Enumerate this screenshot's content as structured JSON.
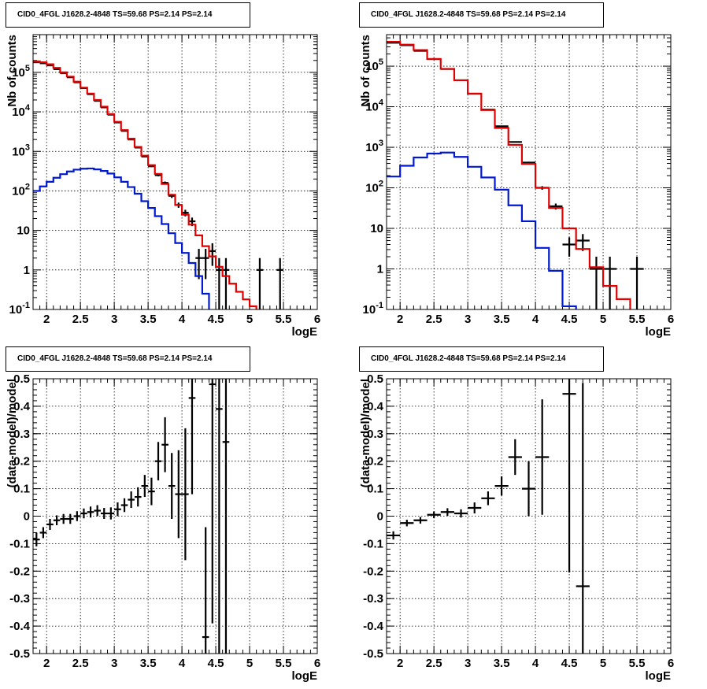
{
  "colors": {
    "data": "#000000",
    "model": "#e00000",
    "component": "#0018d0",
    "grid": "#000000"
  },
  "panels": [
    {
      "title": "CID0_4FGL J1628.2-4848 TS=59.68 PS=2.14 PS=2.14",
      "xlabel": "logE",
      "ylabel": "Nb of counts"
    },
    {
      "title": "CID0_4FGL J1628.2-4848 TS=59.68 PS=2.14 PS=2.14",
      "xlabel": "logE",
      "ylabel": "Nb of counts"
    },
    {
      "title": "CID0_4FGL J1628.2-4848 TS=59.68 PS=2.14 PS=2.14",
      "xlabel": "logE",
      "ylabel": "(data-model)/model"
    },
    {
      "title": "CID0_4FGL J1628.2-4848 TS=59.68 PS=2.14 PS=2.14",
      "xlabel": "logE",
      "ylabel": "(data-model)/model"
    }
  ],
  "chart_data": [
    {
      "type": "line",
      "title": "CID0_4FGL J1628.2-4848 TS=59.68 PS=2.14 PS=2.14",
      "xlabel": "logE",
      "ylabel": "Nb of counts",
      "xlim": [
        1.8,
        6.0
      ],
      "ylim": [
        0.1,
        900000
      ],
      "yscale": "log",
      "grid": true,
      "xticks": [
        "2",
        "2.5",
        "3",
        "3.5",
        "4",
        "4.5",
        "5",
        "5.5",
        "6"
      ],
      "yticks": [
        "10^-1",
        "1",
        "10",
        "10^2",
        "10^3",
        "10^4",
        "10^5"
      ],
      "bin_width": 0.1,
      "series": [
        {
          "role": "data",
          "style": "errorbar",
          "x": [
            1.85,
            1.95,
            2.05,
            2.15,
            2.25,
            2.35,
            2.45,
            2.55,
            2.65,
            2.75,
            2.85,
            2.95,
            3.05,
            3.15,
            3.25,
            3.35,
            3.45,
            3.55,
            3.65,
            3.75,
            3.85,
            3.95,
            4.05,
            4.15,
            4.25,
            4.35,
            4.45,
            4.55,
            4.65,
            5.15,
            5.45
          ],
          "y": [
            180000,
            170000,
            150000,
            120000,
            95000,
            75000,
            56000,
            40000,
            28000,
            19000,
            13000,
            8500,
            5400,
            3300,
            2000,
            1250,
            740,
            420,
            250,
            160,
            75,
            44,
            28,
            17,
            2,
            2,
            3,
            1,
            1,
            1,
            1
          ]
        },
        {
          "role": "model",
          "style": "step",
          "x": [
            1.85,
            1.95,
            2.05,
            2.15,
            2.25,
            2.35,
            2.45,
            2.55,
            2.65,
            2.75,
            2.85,
            2.95,
            3.05,
            3.15,
            3.25,
            3.35,
            3.45,
            3.55,
            3.65,
            3.75,
            3.85,
            3.95,
            4.05,
            4.15,
            4.25,
            4.35,
            4.45,
            4.55,
            4.65,
            4.75,
            4.85,
            4.95,
            5.05,
            5.15,
            5.25
          ],
          "y": [
            190000,
            180000,
            160000,
            130000,
            100000,
            78000,
            58000,
            41000,
            29000,
            20000,
            13500,
            8800,
            5600,
            3450,
            2100,
            1300,
            780,
            450,
            270,
            150,
            80,
            44,
            25,
            14,
            7.5,
            4,
            2.2,
            1.2,
            0.7,
            0.45,
            0.28,
            0.18,
            0.12,
            0.08,
            0.05
          ]
        },
        {
          "role": "component",
          "style": "step",
          "x": [
            1.85,
            1.95,
            2.05,
            2.15,
            2.25,
            2.35,
            2.45,
            2.55,
            2.65,
            2.75,
            2.85,
            2.95,
            3.05,
            3.15,
            3.25,
            3.35,
            3.45,
            3.55,
            3.65,
            3.75,
            3.85,
            3.95,
            4.05,
            4.15,
            4.25,
            4.35,
            4.45
          ],
          "y": [
            100,
            130,
            170,
            215,
            265,
            310,
            345,
            365,
            370,
            350,
            320,
            275,
            220,
            170,
            125,
            85,
            55,
            37,
            23,
            14.5,
            8.5,
            4.8,
            2.7,
            1.5,
            0.7,
            0.25,
            0.05
          ]
        }
      ]
    },
    {
      "type": "line",
      "title": "CID0_4FGL J1628.2-4848 TS=59.68 PS=2.14 PS=2.14",
      "xlabel": "logE",
      "ylabel": "Nb of counts",
      "xlim": [
        1.8,
        6.0
      ],
      "ylim": [
        0.1,
        600000
      ],
      "yscale": "log",
      "grid": true,
      "xticks": [
        "2",
        "2.5",
        "3",
        "3.5",
        "4",
        "4.5",
        "5",
        "5.5",
        "6"
      ],
      "yticks": [
        "10^-1",
        "1",
        "10",
        "10^2",
        "10^3",
        "10^4",
        "10^5"
      ],
      "bin_width": 0.2,
      "series": [
        {
          "role": "data",
          "style": "errorbar",
          "x": [
            1.9,
            2.1,
            2.3,
            2.5,
            2.7,
            2.9,
            3.1,
            3.3,
            3.5,
            3.7,
            3.9,
            4.1,
            4.3,
            4.5,
            4.7,
            4.9,
            5.1,
            5.5
          ],
          "y": [
            380000,
            330000,
            240000,
            150000,
            85000,
            45000,
            21000,
            8500,
            3300,
            1350,
            420,
            100,
            35,
            4,
            5,
            1,
            1,
            1
          ]
        },
        {
          "role": "model",
          "style": "step",
          "x": [
            1.9,
            2.1,
            2.3,
            2.5,
            2.7,
            2.9,
            3.1,
            3.3,
            3.5,
            3.7,
            3.9,
            4.1,
            4.3,
            4.5,
            4.7,
            4.9,
            5.1,
            5.3,
            5.5,
            5.7
          ],
          "y": [
            400000,
            340000,
            250000,
            150000,
            86000,
            45000,
            21000,
            8300,
            3000,
            1150,
            390,
            100,
            32,
            10,
            3.1,
            1.1,
            0.38,
            0.18,
            0.09,
            0.04
          ]
        },
        {
          "role": "component",
          "style": "step",
          "x": [
            1.9,
            2.1,
            2.3,
            2.5,
            2.7,
            2.9,
            3.1,
            3.3,
            3.5,
            3.7,
            3.9,
            4.1,
            4.3,
            4.5,
            4.7
          ],
          "y": [
            190,
            350,
            560,
            700,
            740,
            580,
            330,
            180,
            90,
            37,
            15,
            3.3,
            0.9,
            0.12,
            0.04
          ]
        }
      ]
    },
    {
      "type": "scatter",
      "title": "CID0_4FGL J1628.2-4848 TS=59.68 PS=2.14 PS=2.14",
      "xlabel": "logE",
      "ylabel": "(data-model)/model",
      "xlim": [
        1.8,
        6.0
      ],
      "ylim": [
        -0.5,
        0.5
      ],
      "grid": true,
      "xticks": [
        "2",
        "2.5",
        "3",
        "3.5",
        "4",
        "4.5",
        "5",
        "5.5",
        "6"
      ],
      "yticks": [
        "-0.5",
        "-0.4",
        "-0.3",
        "-0.2",
        "-0.1",
        "0",
        "0.1",
        "0.2",
        "0.3",
        "0.4",
        "0.5"
      ],
      "bin_width": 0.1,
      "series": [
        {
          "role": "data",
          "style": "errorbar",
          "x": [
            1.85,
            1.95,
            2.05,
            2.15,
            2.25,
            2.35,
            2.45,
            2.55,
            2.65,
            2.75,
            2.85,
            2.95,
            3.05,
            3.15,
            3.25,
            3.35,
            3.45,
            3.55,
            3.65,
            3.75,
            3.85,
            3.95,
            4.05,
            4.15,
            4.35,
            4.45,
            4.55,
            4.65
          ],
          "y": [
            -0.085,
            -0.06,
            -0.03,
            -0.015,
            -0.01,
            -0.01,
            0,
            0.01,
            0.015,
            0.02,
            0.01,
            0.01,
            0.025,
            0.04,
            0.06,
            0.07,
            0.11,
            0.09,
            0.2,
            0.26,
            0.11,
            0.08,
            0.08,
            0.43,
            -0.44,
            0.48,
            0.39,
            0.27
          ],
          "yerr": [
            0.025,
            0.02,
            0.02,
            0.018,
            0.018,
            0.018,
            0.018,
            0.018,
            0.02,
            0.02,
            0.02,
            0.022,
            0.025,
            0.025,
            0.03,
            0.035,
            0.04,
            0.05,
            0.07,
            0.1,
            0.12,
            0.16,
            0.24,
            0.35,
            0.4,
            0.87,
            0.9,
            0.9
          ]
        }
      ]
    },
    {
      "type": "scatter",
      "title": "CID0_4FGL J1628.2-4848 TS=59.68 PS=2.14 PS=2.14",
      "xlabel": "logE",
      "ylabel": "(data-model)/model",
      "xlim": [
        1.8,
        6.0
      ],
      "ylim": [
        -0.5,
        0.5
      ],
      "grid": true,
      "xticks": [
        "2",
        "2.5",
        "3",
        "3.5",
        "4",
        "4.5",
        "5",
        "5.5",
        "6"
      ],
      "yticks": [
        "-0.5",
        "-0.4",
        "-0.3",
        "-0.2",
        "-0.1",
        "0",
        "0.1",
        "0.2",
        "0.3",
        "0.4",
        "0.5"
      ],
      "bin_width": 0.2,
      "series": [
        {
          "role": "data",
          "style": "errorbar",
          "x": [
            1.9,
            2.1,
            2.3,
            2.5,
            2.7,
            2.9,
            3.1,
            3.3,
            3.5,
            3.7,
            3.9,
            4.1,
            4.5,
            4.7
          ],
          "y": [
            -0.07,
            -0.025,
            -0.015,
            0.005,
            0.015,
            0.01,
            0.03,
            0.065,
            0.11,
            0.215,
            0.1,
            0.215,
            0.445,
            -0.255
          ],
          "yerr": [
            0.015,
            0.012,
            0.012,
            0.012,
            0.014,
            0.015,
            0.02,
            0.025,
            0.035,
            0.065,
            0.1,
            0.21,
            0.65,
            0.74
          ]
        }
      ]
    }
  ]
}
